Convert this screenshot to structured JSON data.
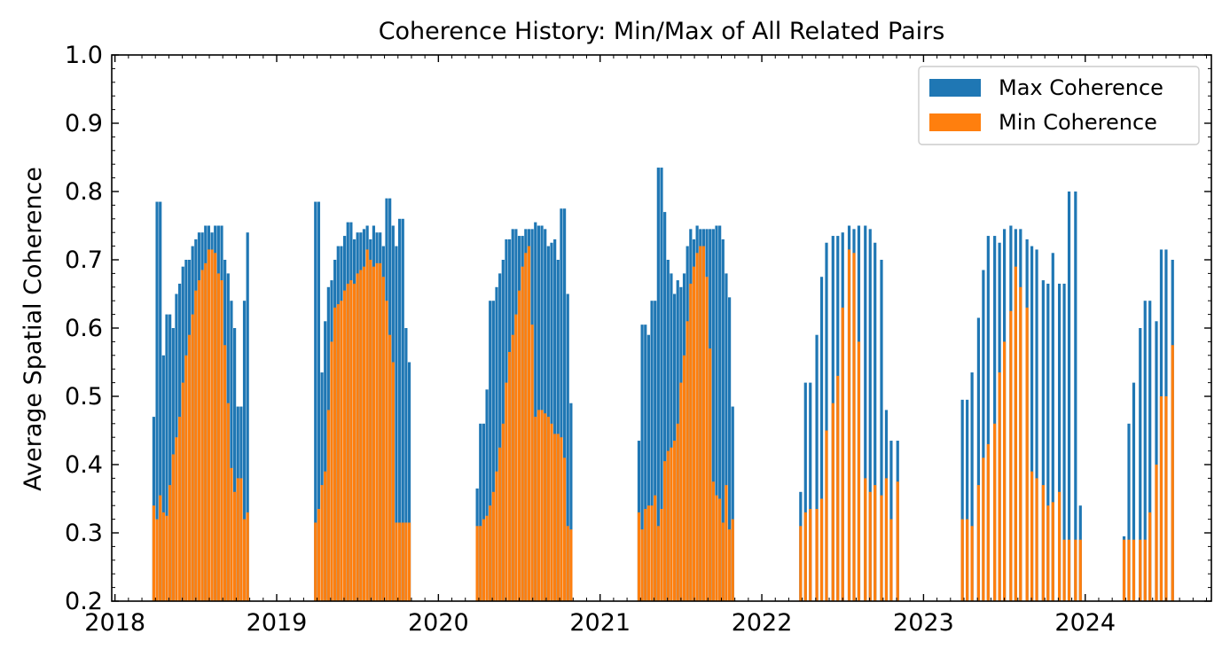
{
  "chart_data": {
    "type": "bar",
    "title": "Coherence History: Min/Max of All Related Pairs",
    "xlabel": "",
    "ylabel": "Average Spatial Coherence",
    "xlim": [
      2017.98,
      2024.78
    ],
    "ylim": [
      0.2,
      1.0
    ],
    "x_ticks": [
      "2018",
      "2019",
      "2020",
      "2021",
      "2022",
      "2023",
      "2024"
    ],
    "y_ticks": [
      "0.2",
      "0.3",
      "0.4",
      "0.5",
      "0.6",
      "0.7",
      "0.8",
      "0.9",
      "1.0"
    ],
    "grid": false,
    "legend": {
      "placement": "top-right",
      "entries": [
        "Max Coherence",
        "Min Coherence"
      ]
    },
    "colors": {
      "max": "#1f77b4",
      "min": "#ff7f0e"
    },
    "series": [
      {
        "name": "Max Coherence",
        "x": [
          2018.24,
          2018.26,
          2018.28,
          2018.3,
          2018.32,
          2018.34,
          2018.36,
          2018.38,
          2018.4,
          2018.42,
          2018.44,
          2018.46,
          2018.48,
          2018.5,
          2018.52,
          2018.54,
          2018.56,
          2018.58,
          2018.6,
          2018.62,
          2018.64,
          2018.66,
          2018.68,
          2018.7,
          2018.72,
          2018.74,
          2018.76,
          2018.78,
          2018.8,
          2018.82,
          2019.24,
          2019.26,
          2019.28,
          2019.3,
          2019.32,
          2019.34,
          2019.36,
          2019.38,
          2019.4,
          2019.42,
          2019.44,
          2019.46,
          2019.48,
          2019.5,
          2019.52,
          2019.54,
          2019.56,
          2019.58,
          2019.6,
          2019.62,
          2019.64,
          2019.66,
          2019.68,
          2019.7,
          2019.72,
          2019.74,
          2019.76,
          2019.78,
          2019.8,
          2019.82,
          2020.24,
          2020.26,
          2020.28,
          2020.3,
          2020.32,
          2020.34,
          2020.36,
          2020.38,
          2020.4,
          2020.42,
          2020.44,
          2020.46,
          2020.48,
          2020.5,
          2020.52,
          2020.54,
          2020.56,
          2020.58,
          2020.6,
          2020.62,
          2020.64,
          2020.66,
          2020.68,
          2020.7,
          2020.72,
          2020.74,
          2020.76,
          2020.78,
          2020.8,
          2020.82,
          2021.24,
          2021.26,
          2021.28,
          2021.3,
          2021.32,
          2021.34,
          2021.36,
          2021.38,
          2021.4,
          2021.42,
          2021.44,
          2021.46,
          2021.48,
          2021.5,
          2021.52,
          2021.54,
          2021.56,
          2021.58,
          2021.6,
          2021.62,
          2021.64,
          2021.66,
          2021.68,
          2021.7,
          2021.72,
          2021.74,
          2021.76,
          2021.78,
          2021.8,
          2021.82,
          2022.24,
          2022.27,
          2022.3,
          2022.34,
          2022.37,
          2022.4,
          2022.44,
          2022.47,
          2022.5,
          2022.54,
          2022.57,
          2022.6,
          2022.64,
          2022.67,
          2022.7,
          2022.74,
          2022.77,
          2022.8,
          2022.84,
          2023.24,
          2023.27,
          2023.3,
          2023.34,
          2023.37,
          2023.4,
          2023.44,
          2023.47,
          2023.5,
          2023.54,
          2023.57,
          2023.6,
          2023.64,
          2023.67,
          2023.7,
          2023.74,
          2023.77,
          2023.8,
          2023.84,
          2023.87,
          2023.9,
          2023.94,
          2023.97,
          2024.24,
          2024.27,
          2024.3,
          2024.34,
          2024.37,
          2024.4,
          2024.44,
          2024.47,
          2024.5,
          2024.54
        ],
        "values": [
          0.47,
          0.785,
          0.785,
          0.56,
          0.62,
          0.62,
          0.6,
          0.65,
          0.665,
          0.69,
          0.7,
          0.7,
          0.72,
          0.73,
          0.74,
          0.74,
          0.75,
          0.75,
          0.74,
          0.75,
          0.75,
          0.75,
          0.7,
          0.68,
          0.64,
          0.6,
          0.485,
          0.485,
          0.64,
          0.74,
          0.785,
          0.785,
          0.535,
          0.61,
          0.66,
          0.67,
          0.7,
          0.72,
          0.72,
          0.735,
          0.755,
          0.755,
          0.73,
          0.74,
          0.74,
          0.745,
          0.75,
          0.73,
          0.75,
          0.74,
          0.74,
          0.72,
          0.79,
          0.79,
          0.75,
          0.72,
          0.76,
          0.76,
          0.6,
          0.55,
          0.365,
          0.46,
          0.46,
          0.51,
          0.64,
          0.64,
          0.66,
          0.68,
          0.7,
          0.73,
          0.73,
          0.745,
          0.745,
          0.735,
          0.735,
          0.745,
          0.745,
          0.745,
          0.755,
          0.75,
          0.75,
          0.745,
          0.72,
          0.725,
          0.73,
          0.7,
          0.775,
          0.775,
          0.65,
          0.49,
          0.435,
          0.605,
          0.605,
          0.59,
          0.64,
          0.64,
          0.835,
          0.835,
          0.77,
          0.7,
          0.68,
          0.65,
          0.67,
          0.66,
          0.68,
          0.72,
          0.745,
          0.73,
          0.75,
          0.745,
          0.745,
          0.745,
          0.745,
          0.745,
          0.75,
          0.75,
          0.73,
          0.68,
          0.645,
          0.485,
          0.36,
          0.52,
          0.52,
          0.59,
          0.675,
          0.725,
          0.735,
          0.735,
          0.74,
          0.75,
          0.745,
          0.75,
          0.75,
          0.745,
          0.725,
          0.7,
          0.48,
          0.435,
          0.435,
          0.495,
          0.495,
          0.535,
          0.615,
          0.685,
          0.735,
          0.735,
          0.725,
          0.745,
          0.75,
          0.745,
          0.745,
          0.73,
          0.72,
          0.715,
          0.67,
          0.665,
          0.71,
          0.665,
          0.665,
          0.8,
          0.8,
          0.34,
          0.295,
          0.46,
          0.52,
          0.6,
          0.64,
          0.64,
          0.61,
          0.715,
          0.715,
          0.7
        ]
      },
      {
        "name": "Min Coherence",
        "x": [
          2018.24,
          2018.26,
          2018.28,
          2018.3,
          2018.32,
          2018.34,
          2018.36,
          2018.38,
          2018.4,
          2018.42,
          2018.44,
          2018.46,
          2018.48,
          2018.5,
          2018.52,
          2018.54,
          2018.56,
          2018.58,
          2018.6,
          2018.62,
          2018.64,
          2018.66,
          2018.68,
          2018.7,
          2018.72,
          2018.74,
          2018.76,
          2018.78,
          2018.8,
          2018.82,
          2019.24,
          2019.26,
          2019.28,
          2019.3,
          2019.32,
          2019.34,
          2019.36,
          2019.38,
          2019.4,
          2019.42,
          2019.44,
          2019.46,
          2019.48,
          2019.5,
          2019.52,
          2019.54,
          2019.56,
          2019.58,
          2019.6,
          2019.62,
          2019.64,
          2019.66,
          2019.68,
          2019.7,
          2019.72,
          2019.74,
          2019.76,
          2019.78,
          2019.8,
          2019.82,
          2020.24,
          2020.26,
          2020.28,
          2020.3,
          2020.32,
          2020.34,
          2020.36,
          2020.38,
          2020.4,
          2020.42,
          2020.44,
          2020.46,
          2020.48,
          2020.5,
          2020.52,
          2020.54,
          2020.56,
          2020.58,
          2020.6,
          2020.62,
          2020.64,
          2020.66,
          2020.68,
          2020.7,
          2020.72,
          2020.74,
          2020.76,
          2020.78,
          2020.8,
          2020.82,
          2021.24,
          2021.26,
          2021.28,
          2021.3,
          2021.32,
          2021.34,
          2021.36,
          2021.38,
          2021.4,
          2021.42,
          2021.44,
          2021.46,
          2021.48,
          2021.5,
          2021.52,
          2021.54,
          2021.56,
          2021.58,
          2021.6,
          2021.62,
          2021.64,
          2021.66,
          2021.68,
          2021.7,
          2021.72,
          2021.74,
          2021.76,
          2021.78,
          2021.8,
          2021.82,
          2022.24,
          2022.27,
          2022.3,
          2022.34,
          2022.37,
          2022.4,
          2022.44,
          2022.47,
          2022.5,
          2022.54,
          2022.57,
          2022.6,
          2022.64,
          2022.67,
          2022.7,
          2022.74,
          2022.77,
          2022.8,
          2022.84,
          2023.24,
          2023.27,
          2023.3,
          2023.34,
          2023.37,
          2023.4,
          2023.44,
          2023.47,
          2023.5,
          2023.54,
          2023.57,
          2023.6,
          2023.64,
          2023.67,
          2023.7,
          2023.74,
          2023.77,
          2023.8,
          2023.84,
          2023.87,
          2023.9,
          2023.94,
          2023.97,
          2024.24,
          2024.27,
          2024.3,
          2024.34,
          2024.37,
          2024.4,
          2024.44,
          2024.47,
          2024.5,
          2024.54
        ],
        "values": [
          0.34,
          0.32,
          0.355,
          0.33,
          0.325,
          0.37,
          0.415,
          0.44,
          0.47,
          0.52,
          0.56,
          0.59,
          0.62,
          0.655,
          0.67,
          0.685,
          0.695,
          0.715,
          0.715,
          0.71,
          0.68,
          0.67,
          0.575,
          0.49,
          0.395,
          0.36,
          0.38,
          0.38,
          0.32,
          0.33,
          0.315,
          0.335,
          0.37,
          0.39,
          0.48,
          0.58,
          0.63,
          0.635,
          0.64,
          0.655,
          0.665,
          0.67,
          0.665,
          0.68,
          0.685,
          0.69,
          0.715,
          0.7,
          0.69,
          0.695,
          0.695,
          0.675,
          0.64,
          0.59,
          0.55,
          0.315,
          0.315,
          0.315,
          0.315,
          0.315,
          0.31,
          0.31,
          0.32,
          0.325,
          0.34,
          0.36,
          0.39,
          0.425,
          0.46,
          0.52,
          0.565,
          0.59,
          0.62,
          0.655,
          0.69,
          0.71,
          0.72,
          0.605,
          0.47,
          0.48,
          0.48,
          0.475,
          0.47,
          0.46,
          0.445,
          0.445,
          0.44,
          0.41,
          0.31,
          0.305,
          0.33,
          0.305,
          0.335,
          0.34,
          0.34,
          0.355,
          0.31,
          0.335,
          0.405,
          0.42,
          0.425,
          0.435,
          0.46,
          0.52,
          0.56,
          0.61,
          0.665,
          0.69,
          0.71,
          0.72,
          0.72,
          0.675,
          0.57,
          0.375,
          0.355,
          0.35,
          0.315,
          0.37,
          0.305,
          0.32,
          0.31,
          0.33,
          0.335,
          0.335,
          0.35,
          0.45,
          0.49,
          0.53,
          0.63,
          0.715,
          0.71,
          0.58,
          0.38,
          0.36,
          0.37,
          0.355,
          0.38,
          0.32,
          0.375,
          0.32,
          0.32,
          0.31,
          0.37,
          0.41,
          0.43,
          0.46,
          0.535,
          0.58,
          0.625,
          0.69,
          0.66,
          0.63,
          0.39,
          0.38,
          0.37,
          0.34,
          0.345,
          0.36,
          0.29,
          0.29,
          0.29,
          0.29,
          0.29,
          0.29,
          0.29,
          0.29,
          0.29,
          0.33,
          0.4,
          0.5,
          0.5,
          0.575
        ]
      }
    ]
  }
}
